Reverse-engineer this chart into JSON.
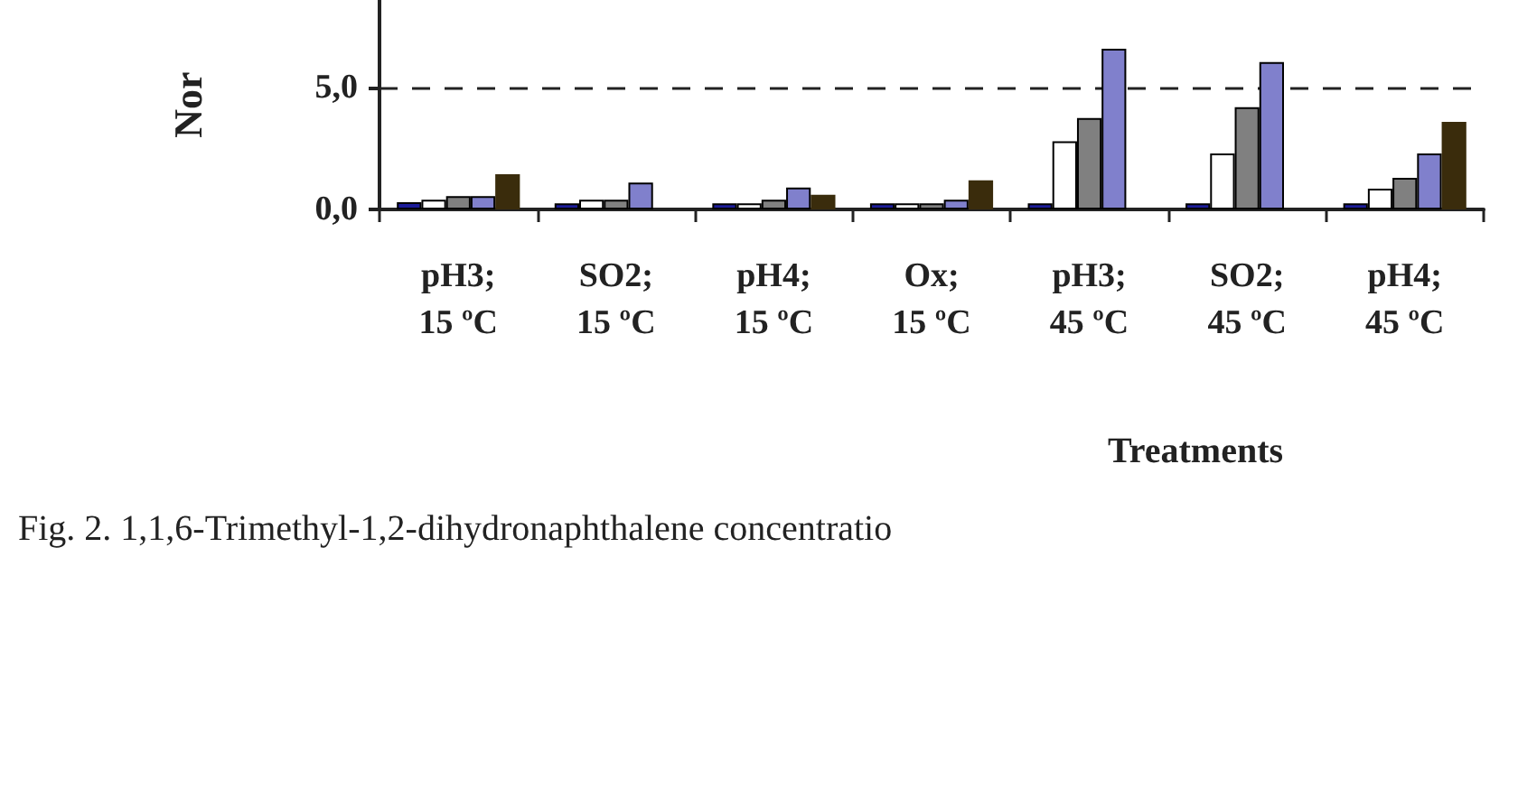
{
  "chart_data": {
    "type": "bar",
    "ylabel": "Nor",
    "xlabel": "Treatments",
    "annotations": [
      "Fig. 2. 1,1,6-Trimethyl-1,2-dihydronaphthalene concentratio"
    ],
    "categories": [
      "pH3;\n15 ºC",
      "SO2;\n15 ºC",
      "pH4;\n15 ºC",
      "Ox;\n15 ºC",
      "pH3;\n45 ºC",
      "SO2;\n45 ºC",
      "pH4;\n45 ºC"
    ],
    "series": [
      {
        "color": "#1c1c9a",
        "values": [
          0.3,
          0.25,
          0.25,
          0.25,
          0.25,
          0.25,
          0.25
        ]
      },
      {
        "color": "#ffffff",
        "values": [
          0.4,
          0.4,
          0.25,
          0.25,
          2.8,
          2.3,
          0.85
        ]
      },
      {
        "color": "#808080",
        "values": [
          0.55,
          0.4,
          0.4,
          0.25,
          3.75,
          4.2,
          1.3
        ]
      },
      {
        "color": "#8080cc",
        "values": [
          0.55,
          1.1,
          0.9,
          0.4,
          6.6,
          6.05,
          2.3
        ]
      },
      {
        "color": "#3a2c0c",
        "values": [
          1.45,
          null,
          0.6,
          1.2,
          null,
          null,
          3.6
        ]
      }
    ],
    "ylim": [
      0,
      8.6
    ],
    "yticks": [
      {
        "value": 0,
        "label": "0,0"
      },
      {
        "value": 5,
        "label": "5,0"
      }
    ],
    "grid": "y"
  }
}
